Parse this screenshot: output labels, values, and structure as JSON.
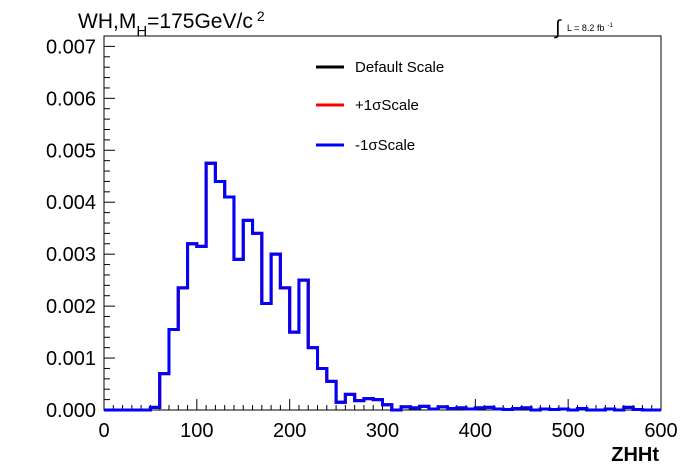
{
  "chart_data": {
    "type": "histogram",
    "title_parts": {
      "a": "WH,M",
      "sub": "H",
      "b": "=175GeV/c",
      "sup": "2"
    },
    "lumi_label": {
      "integral": "∫",
      "text": "L = 8.2 fb",
      "sup": "-1"
    },
    "xlabel": "ZHHt",
    "ylabel": "",
    "xlim": [
      0,
      600
    ],
    "ylim": [
      0,
      0.0072
    ],
    "x_ticks": [
      "0",
      "100",
      "200",
      "300",
      "400",
      "500",
      "600"
    ],
    "x_tick_values": [
      0,
      100,
      200,
      300,
      400,
      500,
      600
    ],
    "y_ticks": [
      "0.000",
      "0.001",
      "0.002",
      "0.003",
      "0.004",
      "0.005",
      "0.006",
      "0.007"
    ],
    "y_tick_values": [
      0,
      0.001,
      0.002,
      0.003,
      0.004,
      0.005,
      0.006,
      0.007
    ],
    "bin_width": 10,
    "bin_edges_start": 0,
    "legend_position": "top-center",
    "series": [
      {
        "name": "Default Scale",
        "color": "#000000",
        "values": [
          0,
          0,
          0,
          0,
          0,
          5e-05,
          0.0007,
          0.00155,
          0.00235,
          0.0032,
          0.00315,
          0.00475,
          0.0044,
          0.0041,
          0.0029,
          0.00365,
          0.0034,
          0.00205,
          0.003,
          0.00235,
          0.0015,
          0.0025,
          0.0012,
          0.0008,
          0.00055,
          0.00015,
          0.0003,
          0.00018,
          0.00022,
          0.0002,
          0.0001,
          0,
          6e-05,
          4e-05,
          7e-05,
          2e-05,
          6e-05,
          3e-05,
          4e-05,
          2e-05,
          4e-05,
          5e-05,
          2e-05,
          1e-05,
          3e-05,
          4e-05,
          0,
          2e-05,
          1e-05,
          2e-05,
          0,
          3e-05,
          0,
          0,
          2e-05,
          0,
          5e-05,
          1e-05,
          0,
          0
        ]
      },
      {
        "name": "+1σScale",
        "color": "#ff0000",
        "values": [
          0,
          0,
          0,
          0,
          0,
          5e-05,
          0.0007,
          0.00155,
          0.00235,
          0.0032,
          0.00315,
          0.00475,
          0.0044,
          0.0041,
          0.0029,
          0.00365,
          0.0034,
          0.00205,
          0.003,
          0.00235,
          0.0015,
          0.0025,
          0.0012,
          0.0008,
          0.00055,
          0.00015,
          0.0003,
          0.00018,
          0.00022,
          0.0002,
          0.0001,
          0,
          6e-05,
          4e-05,
          7e-05,
          2e-05,
          6e-05,
          3e-05,
          4e-05,
          2e-05,
          4e-05,
          5e-05,
          2e-05,
          1e-05,
          3e-05,
          4e-05,
          0,
          2e-05,
          1e-05,
          2e-05,
          0,
          3e-05,
          0,
          0,
          2e-05,
          0,
          5e-05,
          1e-05,
          0,
          0
        ]
      },
      {
        "name": "-1σScale",
        "color": "#0000ff",
        "values": [
          0,
          0,
          0,
          0,
          0,
          5e-05,
          0.0007,
          0.00155,
          0.00235,
          0.0032,
          0.00315,
          0.00475,
          0.0044,
          0.0041,
          0.0029,
          0.00365,
          0.0034,
          0.00205,
          0.003,
          0.00235,
          0.0015,
          0.0025,
          0.0012,
          0.0008,
          0.00055,
          0.00015,
          0.0003,
          0.00018,
          0.00022,
          0.0002,
          0.0001,
          0,
          6e-05,
          4e-05,
          7e-05,
          2e-05,
          6e-05,
          3e-05,
          4e-05,
          2e-05,
          4e-05,
          5e-05,
          2e-05,
          1e-05,
          3e-05,
          4e-05,
          0,
          2e-05,
          1e-05,
          2e-05,
          0,
          3e-05,
          0,
          0,
          2e-05,
          0,
          5e-05,
          1e-05,
          0,
          0
        ]
      }
    ]
  }
}
